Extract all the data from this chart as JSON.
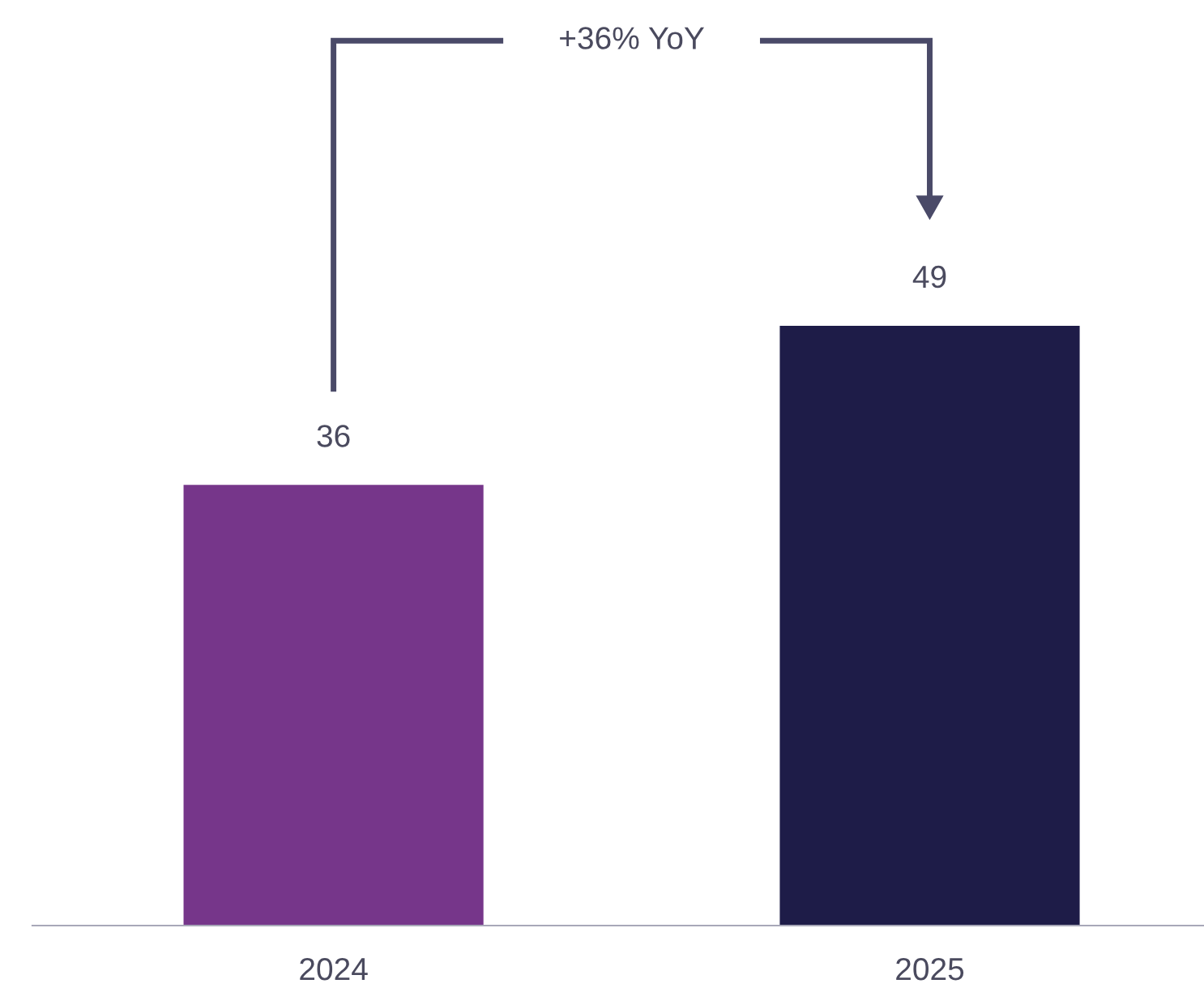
{
  "chart_data": {
    "type": "bar",
    "categories": [
      "2024",
      "2025"
    ],
    "values": [
      36,
      49
    ],
    "colors": [
      "#76368a",
      "#1e1c48"
    ],
    "data_labels": true,
    "grid": false,
    "legend": false,
    "annotations": [
      "+36% YoY"
    ]
  }
}
